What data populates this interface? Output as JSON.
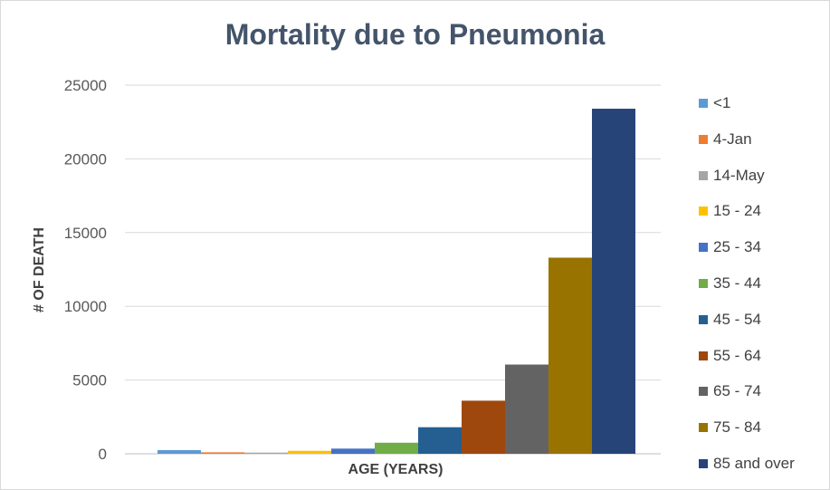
{
  "chart_data": {
    "type": "bar",
    "title": "Mortality due to Pneumonia",
    "xlabel": "AGE (YEARS)",
    "ylabel": "# OF DEATH",
    "ylim": [
      0,
      25000
    ],
    "yticks": [
      0,
      5000,
      10000,
      15000,
      20000,
      25000
    ],
    "grid": true,
    "legend_position": "right",
    "series": [
      {
        "name": "<1",
        "values": [
          250
        ],
        "color": "#5b9bd5"
      },
      {
        "name": "4-Jan",
        "values": [
          100
        ],
        "color": "#ed7d31"
      },
      {
        "name": "14-May",
        "values": [
          80
        ],
        "color": "#a5a5a5"
      },
      {
        "name": "15 - 24",
        "values": [
          200
        ],
        "color": "#ffc000"
      },
      {
        "name": "25 - 34",
        "values": [
          350
        ],
        "color": "#4472c4"
      },
      {
        "name": "35 - 44",
        "values": [
          750
        ],
        "color": "#70ad47"
      },
      {
        "name": "45 - 54",
        "values": [
          1800
        ],
        "color": "#255e91"
      },
      {
        "name": "55 - 64",
        "values": [
          3600
        ],
        "color": "#9e480e"
      },
      {
        "name": "65 - 74",
        "values": [
          6050
        ],
        "color": "#636363"
      },
      {
        "name": "75 - 84",
        "values": [
          13300
        ],
        "color": "#997300"
      },
      {
        "name": "85 and over",
        "values": [
          23400
        ],
        "color": "#264478"
      }
    ]
  }
}
